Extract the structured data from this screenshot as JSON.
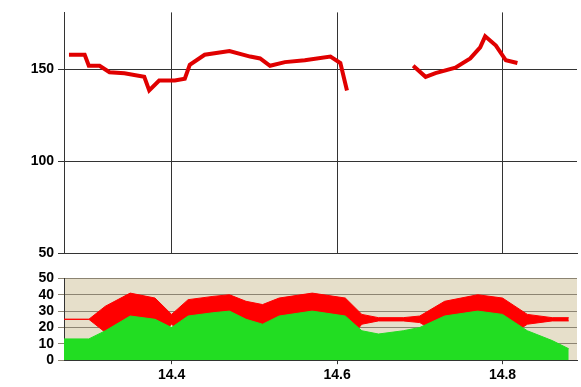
{
  "chart_data": [
    {
      "type": "line",
      "x": [
        14.276,
        14.295,
        14.3,
        14.313,
        14.325,
        14.343,
        14.367,
        14.373,
        14.385,
        14.404,
        14.416,
        14.422,
        14.44,
        14.47,
        14.495,
        14.507,
        14.519,
        14.537,
        14.561,
        14.592,
        14.604,
        14.612,
        14.65,
        14.692,
        14.707,
        14.719,
        14.743,
        14.761,
        14.773,
        14.779,
        14.792,
        14.804,
        14.818
      ],
      "series": [
        {
          "color": "#e00000",
          "values": [
            158,
            158,
            152,
            152,
            148.5,
            148,
            146,
            138.6,
            144,
            144,
            145,
            152.5,
            158,
            160,
            157,
            156,
            152,
            154,
            155,
            157,
            153.5,
            138.6,
            null,
            152,
            146,
            148,
            151,
            156,
            162,
            168,
            163,
            155,
            153.5
          ]
        }
      ],
      "xlim": [
        14.27,
        14.89
      ],
      "xticks": [
        14.4,
        14.6,
        14.8
      ],
      "ylim": [
        50,
        181
      ],
      "yticks": [
        50,
        100,
        150
      ],
      "grid": true,
      "tick_labels": "y"
    },
    {
      "type": "area",
      "x": [
        14.27,
        14.3,
        14.32,
        14.35,
        14.38,
        14.4,
        14.42,
        14.45,
        14.47,
        14.49,
        14.51,
        14.53,
        14.57,
        14.61,
        14.63,
        14.65,
        14.68,
        14.7,
        14.73,
        14.77,
        14.8,
        14.83,
        14.86,
        14.88
      ],
      "series": [
        {
          "type": "area",
          "color": "#22dd22",
          "values": [
            13,
            13,
            18,
            27,
            25,
            20,
            27,
            29,
            30,
            25,
            22,
            27,
            30,
            27,
            18,
            16,
            18,
            20,
            27,
            30,
            28,
            18,
            12,
            7
          ]
        },
        {
          "type": "range",
          "color": "#ff0000",
          "values": [
            25,
            25,
            33,
            41,
            38,
            28,
            37,
            39,
            40,
            36,
            34,
            38,
            41,
            38,
            28,
            26,
            26,
            27,
            36,
            40,
            38,
            28,
            26,
            26
          ],
          "lower": [
            25,
            25,
            17,
            10,
            12,
            22,
            13,
            10,
            10,
            14,
            16,
            12,
            5,
            10,
            22,
            24,
            24,
            23,
            14,
            10,
            12,
            22,
            24,
            24
          ]
        }
      ],
      "xlim": [
        14.27,
        14.89
      ],
      "xticks": [
        14.4,
        14.6,
        14.8
      ],
      "ylim": [
        0,
        50
      ],
      "yticks": [
        0,
        10,
        20,
        30,
        40,
        50
      ],
      "grid": true
    }
  ]
}
